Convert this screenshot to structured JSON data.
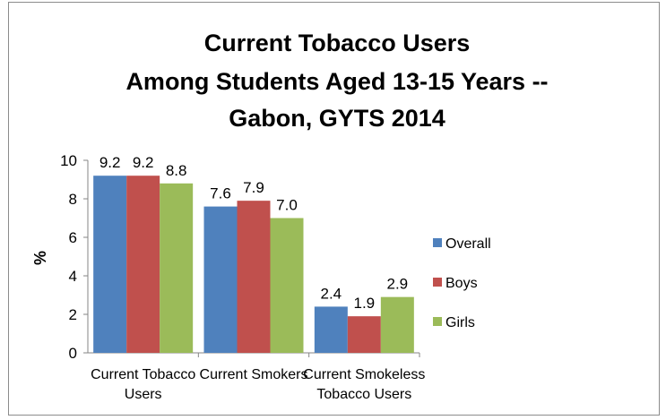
{
  "chart_data": {
    "type": "bar",
    "title_lines": [
      "Current Tobacco Users",
      "Among Students Aged 13-15 Years --",
      "Gabon, GYTS 2014"
    ],
    "xlabel": "",
    "ylabel": "%",
    "ylim": [
      0,
      10
    ],
    "yticks": [
      "0",
      "2",
      "4",
      "6",
      "8",
      "10"
    ],
    "categories": [
      [
        "Current Tobacco",
        "Users"
      ],
      [
        "Current Smokers"
      ],
      [
        "Current Smokeless",
        "Tobacco Users"
      ]
    ],
    "series": [
      {
        "name": "Overall",
        "color": "#4f81bd",
        "values": [
          9.2,
          7.6,
          2.4
        ],
        "labels": [
          "9.2",
          "7.6",
          "2.4"
        ]
      },
      {
        "name": "Boys",
        "color": "#c0504d",
        "values": [
          9.2,
          7.9,
          1.9
        ],
        "labels": [
          "9.2",
          "7.9",
          "1.9"
        ]
      },
      {
        "name": "Girls",
        "color": "#9bbb59",
        "values": [
          8.8,
          7.0,
          2.9
        ],
        "labels": [
          "8.8",
          "7.0",
          "2.9"
        ]
      }
    ],
    "grid": false,
    "legend_position": "right"
  }
}
